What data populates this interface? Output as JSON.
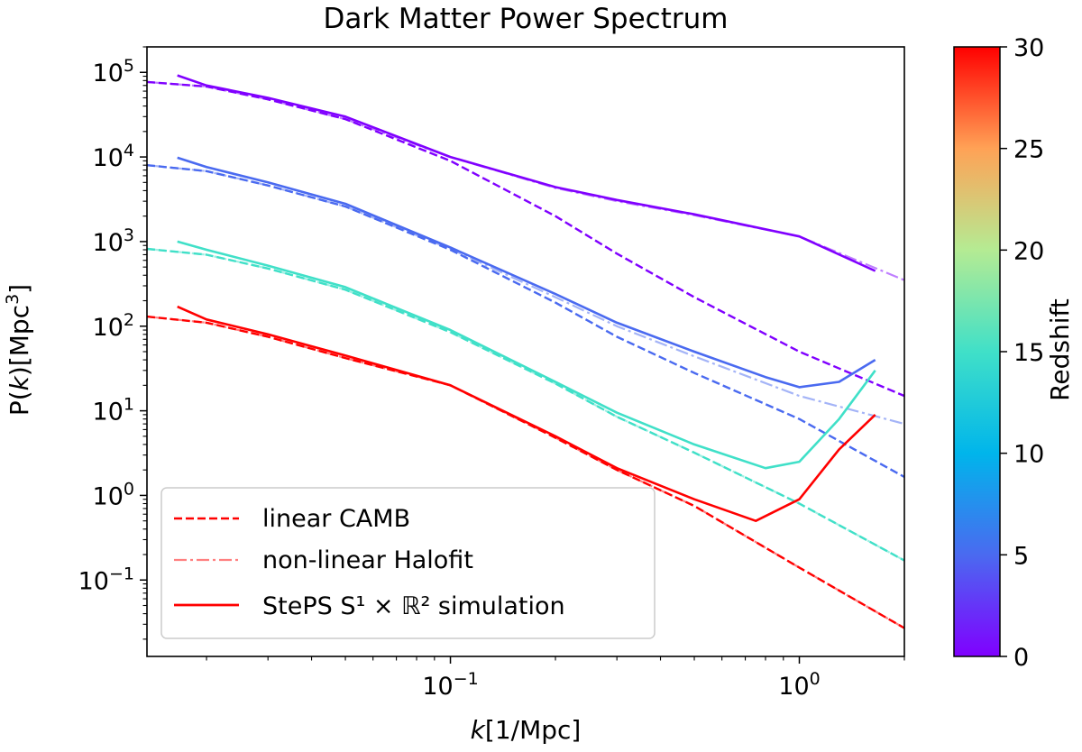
{
  "chart_data": {
    "type": "line",
    "title": "Dark Matter Power Spectrum",
    "xlabel": "k[1/Mpc]",
    "ylabel": "P(k)[Mpc³]",
    "xscale": "log",
    "yscale": "log",
    "xlim": [
      0.0135,
      2.0
    ],
    "ylim": [
      0.0125,
      200000
    ],
    "grid": false,
    "legend_position": "lower-left",
    "legend": [
      {
        "label": "linear CAMB",
        "style": "dashed"
      },
      {
        "label": "non-linear Halofit",
        "style": "dashdot"
      },
      {
        "label": "StePS S¹ × ℝ² simulation",
        "style": "solid"
      }
    ],
    "colorbar": {
      "label": "Redshift",
      "range": [
        0,
        30
      ],
      "ticks": [
        0,
        5,
        10,
        15,
        20,
        25,
        30
      ],
      "colormap": "rainbow"
    },
    "x_ticks": [
      {
        "value": 0.1,
        "base": "10",
        "exp": "−1"
      },
      {
        "value": 1.0,
        "base": "10",
        "exp": "0"
      }
    ],
    "y_ticks": [
      {
        "value": 0.1,
        "base": "10",
        "exp": "−1"
      },
      {
        "value": 1,
        "base": "10",
        "exp": "0"
      },
      {
        "value": 10,
        "base": "10",
        "exp": "1"
      },
      {
        "value": 100,
        "base": "10",
        "exp": "2"
      },
      {
        "value": 1000,
        "base": "10",
        "exp": "3"
      },
      {
        "value": 10000,
        "base": "10",
        "exp": "4"
      },
      {
        "value": 100000,
        "base": "10",
        "exp": "5"
      }
    ],
    "series": [
      {
        "redshift": 0,
        "color": "#8000ff",
        "linear_camb": [
          [
            0.0135,
            77000
          ],
          [
            0.02,
            68000
          ],
          [
            0.03,
            48000
          ],
          [
            0.05,
            28000
          ],
          [
            0.1,
            9000
          ],
          [
            0.2,
            2000
          ],
          [
            0.3,
            720
          ],
          [
            0.5,
            220
          ],
          [
            1.0,
            50
          ],
          [
            2.0,
            15
          ]
        ],
        "halofit": [
          [
            0.0135,
            77000
          ],
          [
            0.02,
            68000
          ],
          [
            0.03,
            48000
          ],
          [
            0.05,
            28000
          ],
          [
            0.1,
            10000
          ],
          [
            0.2,
            4300
          ],
          [
            0.3,
            3000
          ],
          [
            0.5,
            2050
          ],
          [
            1.0,
            1150
          ],
          [
            2.0,
            350
          ]
        ],
        "simulation": [
          [
            0.0165,
            92000
          ],
          [
            0.02,
            70000
          ],
          [
            0.03,
            50000
          ],
          [
            0.05,
            30000
          ],
          [
            0.1,
            10000
          ],
          [
            0.2,
            4400
          ],
          [
            0.3,
            3100
          ],
          [
            0.5,
            2100
          ],
          [
            1.0,
            1150
          ],
          [
            1.65,
            450
          ]
        ]
      },
      {
        "redshift": 3,
        "color": "#4a6af0",
        "linear_camb": [
          [
            0.0135,
            8000
          ],
          [
            0.02,
            6800
          ],
          [
            0.03,
            4600
          ],
          [
            0.05,
            2600
          ],
          [
            0.1,
            800
          ],
          [
            0.2,
            190
          ],
          [
            0.3,
            75
          ],
          [
            0.5,
            28
          ],
          [
            1.0,
            8
          ],
          [
            2.0,
            1.65
          ]
        ],
        "halofit": [
          [
            0.0135,
            8000
          ],
          [
            0.02,
            6800
          ],
          [
            0.03,
            4600
          ],
          [
            0.05,
            2600
          ],
          [
            0.1,
            820
          ],
          [
            0.2,
            220
          ],
          [
            0.3,
            100
          ],
          [
            0.5,
            44
          ],
          [
            1.0,
            15
          ],
          [
            2.0,
            7
          ]
        ],
        "simulation": [
          [
            0.0165,
            9800
          ],
          [
            0.02,
            7600
          ],
          [
            0.03,
            5000
          ],
          [
            0.05,
            2800
          ],
          [
            0.1,
            850
          ],
          [
            0.2,
            240
          ],
          [
            0.3,
            110
          ],
          [
            0.5,
            50
          ],
          [
            0.8,
            25
          ],
          [
            1.0,
            19
          ],
          [
            1.3,
            22
          ],
          [
            1.65,
            40
          ]
        ]
      },
      {
        "redshift": 10,
        "color": "#40e0c8",
        "linear_camb": [
          [
            0.0135,
            820
          ],
          [
            0.02,
            700
          ],
          [
            0.03,
            480
          ],
          [
            0.05,
            270
          ],
          [
            0.1,
            85
          ],
          [
            0.2,
            21
          ],
          [
            0.3,
            8.5
          ],
          [
            0.5,
            3.2
          ],
          [
            1.0,
            0.8
          ],
          [
            2.0,
            0.17
          ]
        ],
        "halofit": [
          [
            0.0135,
            820
          ],
          [
            0.02,
            700
          ],
          [
            0.03,
            480
          ],
          [
            0.05,
            270
          ],
          [
            0.1,
            85
          ],
          [
            0.2,
            21
          ],
          [
            0.3,
            8.5
          ],
          [
            0.5,
            3.2
          ],
          [
            1.0,
            0.8
          ],
          [
            2.0,
            0.17
          ]
        ],
        "simulation": [
          [
            0.0165,
            1000
          ],
          [
            0.02,
            800
          ],
          [
            0.03,
            520
          ],
          [
            0.05,
            290
          ],
          [
            0.1,
            90
          ],
          [
            0.2,
            22
          ],
          [
            0.3,
            9.5
          ],
          [
            0.5,
            4
          ],
          [
            0.8,
            2.1
          ],
          [
            1.0,
            2.5
          ],
          [
            1.3,
            8
          ],
          [
            1.65,
            30
          ]
        ]
      },
      {
        "redshift": 30,
        "color": "#ff0000",
        "linear_camb": [
          [
            0.0135,
            130
          ],
          [
            0.02,
            110
          ],
          [
            0.03,
            75
          ],
          [
            0.05,
            42
          ],
          [
            0.1,
            20
          ],
          [
            0.2,
            4.8
          ],
          [
            0.3,
            2
          ],
          [
            0.5,
            0.75
          ],
          [
            1.0,
            0.14
          ],
          [
            2.0,
            0.027
          ]
        ],
        "halofit": [
          [
            0.0135,
            130
          ],
          [
            0.02,
            110
          ],
          [
            0.03,
            75
          ],
          [
            0.05,
            42
          ],
          [
            0.1,
            20
          ],
          [
            0.2,
            4.8
          ],
          [
            0.3,
            2
          ],
          [
            0.5,
            0.75
          ],
          [
            1.0,
            0.14
          ],
          [
            2.0,
            0.027
          ]
        ],
        "simulation": [
          [
            0.0165,
            170
          ],
          [
            0.02,
            120
          ],
          [
            0.03,
            80
          ],
          [
            0.05,
            45
          ],
          [
            0.1,
            20
          ],
          [
            0.2,
            5
          ],
          [
            0.3,
            2.1
          ],
          [
            0.5,
            0.9
          ],
          [
            0.75,
            0.5
          ],
          [
            1.0,
            0.9
          ],
          [
            1.3,
            3.5
          ],
          [
            1.65,
            9
          ]
        ]
      }
    ]
  }
}
